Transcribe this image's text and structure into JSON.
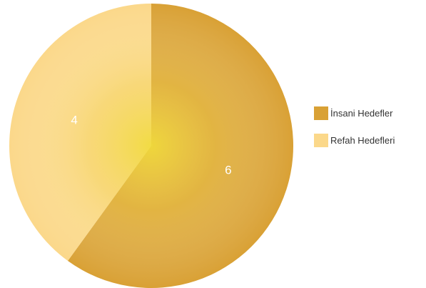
{
  "chart_data": {
    "type": "pie",
    "categories": [
      "İnsani Hedefler",
      "Refah Hedefleri"
    ],
    "values": [
      6,
      4
    ],
    "colors": [
      "#d9a135",
      "#fbd88a"
    ],
    "data_labels": [
      "6",
      "4"
    ],
    "start": "12 o'clock",
    "direction": "clockwise",
    "legend_position": "right"
  }
}
